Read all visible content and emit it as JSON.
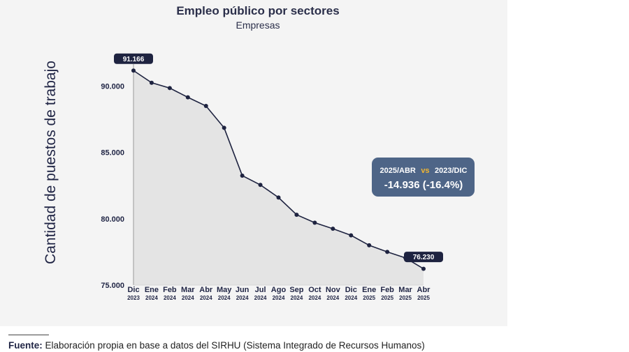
{
  "chart_data": {
    "type": "area",
    "title": "Empleo público por sectores",
    "subtitle": "Empresas",
    "ylabel": "Cantidad de puestos de trabajo",
    "xlabel": "",
    "ylim": [
      75000,
      91600
    ],
    "yticks": [
      {
        "value": 75000,
        "label": "75.000"
      },
      {
        "value": 80000,
        "label": "80.000"
      },
      {
        "value": 85000,
        "label": "85.000"
      },
      {
        "value": 90000,
        "label": "90.000"
      }
    ],
    "categories": [
      {
        "month": "Dic",
        "year": "2023"
      },
      {
        "month": "Ene",
        "year": "2024"
      },
      {
        "month": "Feb",
        "year": "2024"
      },
      {
        "month": "Mar",
        "year": "2024"
      },
      {
        "month": "Abr",
        "year": "2024"
      },
      {
        "month": "May",
        "year": "2024"
      },
      {
        "month": "Jun",
        "year": "2024"
      },
      {
        "month": "Jul",
        "year": "2024"
      },
      {
        "month": "Ago",
        "year": "2024"
      },
      {
        "month": "Sep",
        "year": "2024"
      },
      {
        "month": "Oct",
        "year": "2024"
      },
      {
        "month": "Nov",
        "year": "2024"
      },
      {
        "month": "Dic",
        "year": "2024"
      },
      {
        "month": "Ene",
        "year": "2025"
      },
      {
        "month": "Feb",
        "year": "2025"
      },
      {
        "month": "Mar",
        "year": "2025"
      },
      {
        "month": "Abr",
        "year": "2025"
      }
    ],
    "values": [
      91166,
      90250,
      89850,
      89150,
      88500,
      86850,
      83250,
      82550,
      81600,
      80300,
      79700,
      79250,
      78750,
      78000,
      77500,
      77050,
      76230
    ],
    "point_labels": [
      {
        "index": 0,
        "label": "91.166"
      },
      {
        "index": 16,
        "label": "76.230"
      }
    ],
    "annotation": {
      "left": "2025/ABR",
      "vs": "vs",
      "right": "2023/DIC",
      "value": "-14.936 (-16.4%)"
    },
    "grid": false,
    "legend": "none"
  },
  "colors": {
    "line": "#1e2340",
    "area": "#e4e4e4",
    "pill": "#1e2340",
    "annotation_box": "#4e6587",
    "accent_vs": "#f2b632",
    "panel": "#f4f4f4"
  },
  "source": {
    "label": "Fuente:",
    "text": "Elaboración propia en base a datos del SIRHU (Sistema Integrado de Recursos Humanos)"
  }
}
